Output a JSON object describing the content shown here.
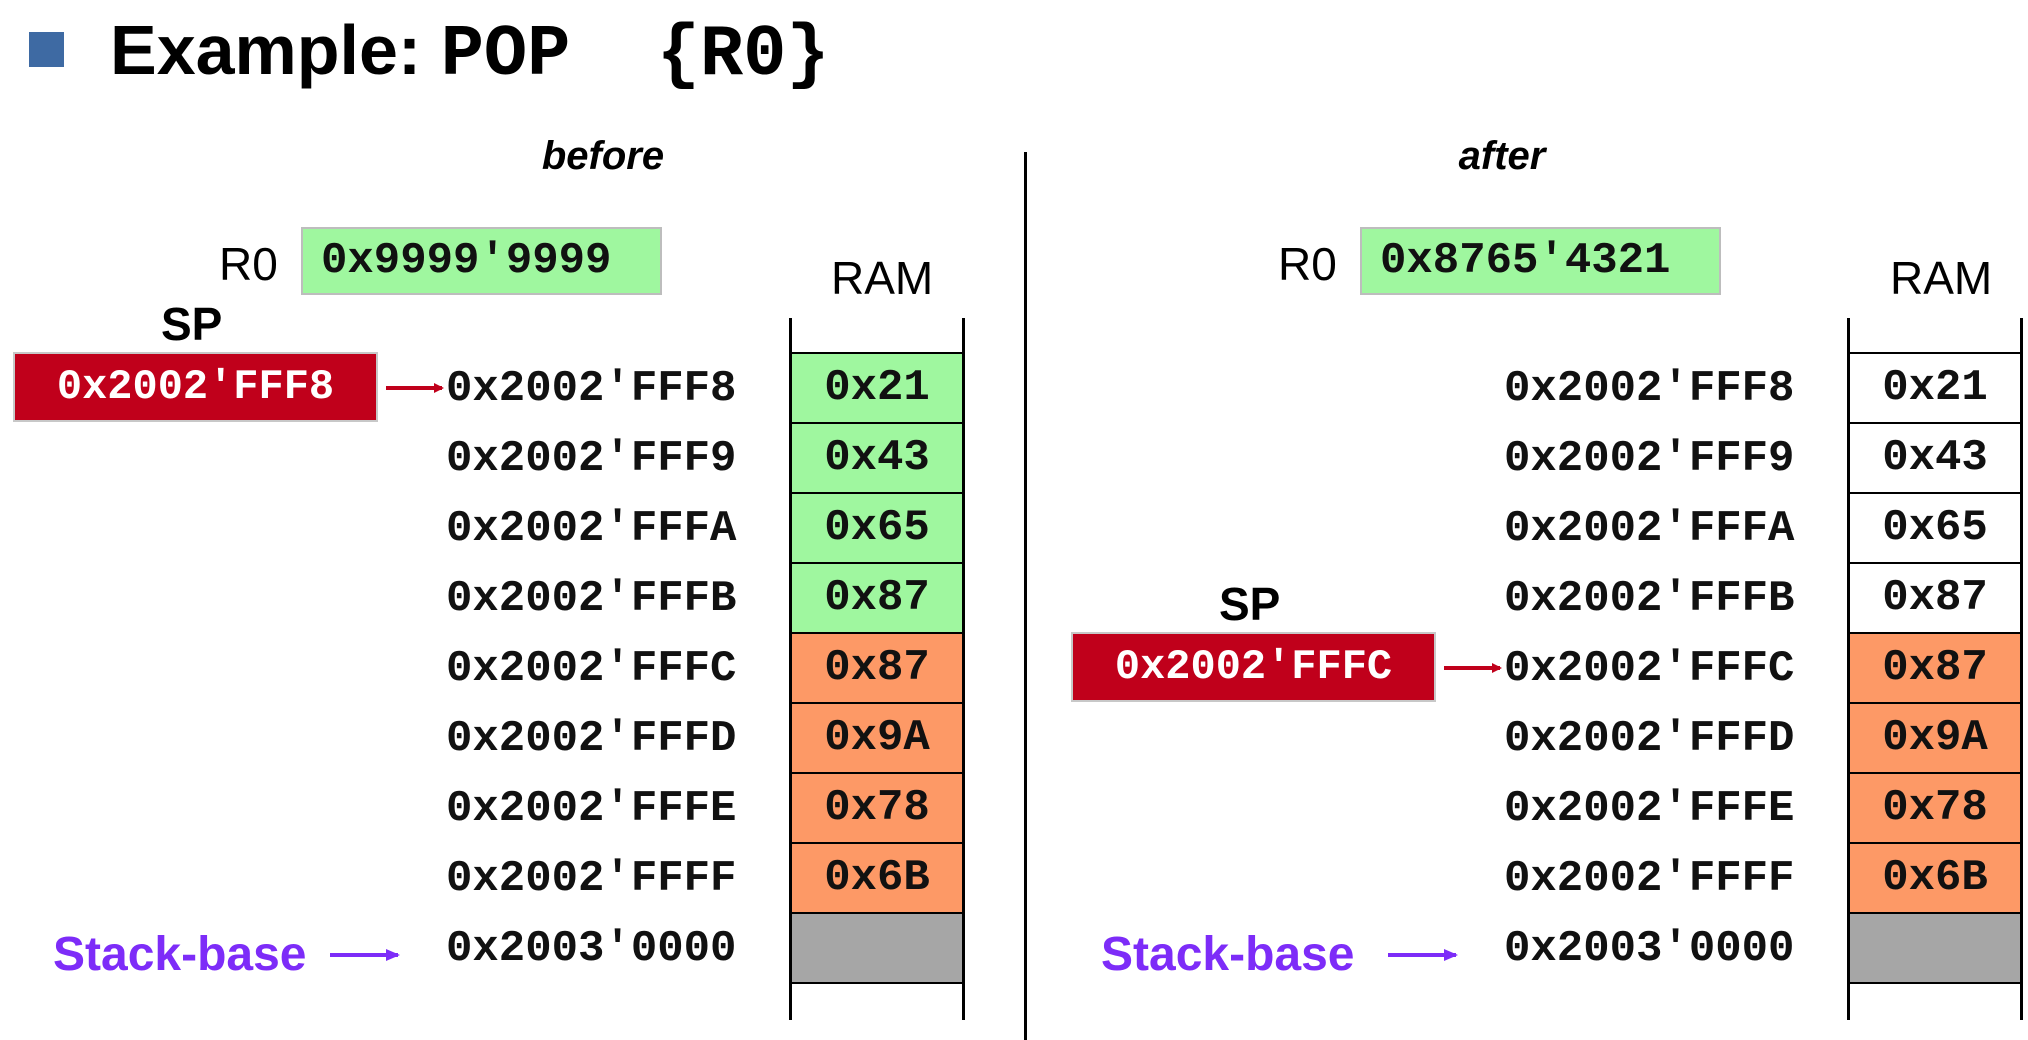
{
  "title": {
    "prefix": "Example: ",
    "code": "POP  {R0}"
  },
  "colors": {
    "bullet": "#3e6aa3",
    "register_fill": "#9ff79f",
    "sp_fill": "#c0001b",
    "popped_fill": "#9ff79f",
    "stack_fill": "#fd9966",
    "free_fill": "#ffffff",
    "base_fill": "#a6a6a6",
    "stack_base_text": "#7d2cf8",
    "arrow_red": "#c0001b",
    "arrow_purple": "#7d2cf8"
  },
  "before": {
    "label": "before",
    "register": {
      "name": "R0",
      "value": "0x9999'9999"
    },
    "ram_label": "RAM",
    "sp": {
      "label": "SP",
      "value": "0x2002'FFF8"
    },
    "stack_base_label": "Stack-base",
    "rows": [
      {
        "address": "0x2002'FFF8",
        "value": "0x21",
        "state": "green"
      },
      {
        "address": "0x2002'FFF9",
        "value": "0x43",
        "state": "green"
      },
      {
        "address": "0x2002'FFFA",
        "value": "0x65",
        "state": "green"
      },
      {
        "address": "0x2002'FFFB",
        "value": "0x87",
        "state": "green"
      },
      {
        "address": "0x2002'FFFC",
        "value": "0x87",
        "state": "orange"
      },
      {
        "address": "0x2002'FFFD",
        "value": "0x9A",
        "state": "orange"
      },
      {
        "address": "0x2002'FFFE",
        "value": "0x78",
        "state": "orange"
      },
      {
        "address": "0x2002'FFFF",
        "value": "0x6B",
        "state": "orange"
      },
      {
        "address": "0x2003'0000",
        "value": "",
        "state": "gray"
      }
    ]
  },
  "after": {
    "label": "after",
    "register": {
      "name": "R0",
      "value": "0x8765'4321"
    },
    "ram_label": "RAM",
    "sp": {
      "label": "SP",
      "value": "0x2002'FFFC"
    },
    "stack_base_label": "Stack-base",
    "rows": [
      {
        "address": "0x2002'FFF8",
        "value": "0x21",
        "state": "white"
      },
      {
        "address": "0x2002'FFF9",
        "value": "0x43",
        "state": "white"
      },
      {
        "address": "0x2002'FFFA",
        "value": "0x65",
        "state": "white"
      },
      {
        "address": "0x2002'FFFB",
        "value": "0x87",
        "state": "white"
      },
      {
        "address": "0x2002'FFFC",
        "value": "0x87",
        "state": "orange"
      },
      {
        "address": "0x2002'FFFD",
        "value": "0x9A",
        "state": "orange"
      },
      {
        "address": "0x2002'FFFE",
        "value": "0x78",
        "state": "orange"
      },
      {
        "address": "0x2002'FFFF",
        "value": "0x6B",
        "state": "orange"
      },
      {
        "address": "0x2003'0000",
        "value": "",
        "state": "gray"
      }
    ]
  }
}
